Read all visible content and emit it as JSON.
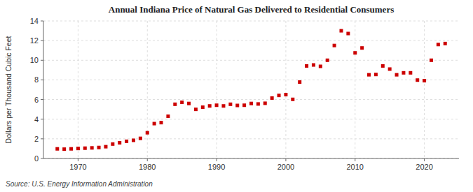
{
  "chart_data": {
    "type": "scatter",
    "title": "Annual Indiana Price of Natural Gas Delivered to Residential Consumers",
    "ylabel": "Dollars per Thousand Cubic Feet",
    "source": "Source: U.S. Energy Information Administration",
    "color": "#cc0000",
    "marker": "square",
    "grid": true,
    "x": [
      1967,
      1968,
      1969,
      1970,
      1971,
      1972,
      1973,
      1974,
      1975,
      1976,
      1977,
      1978,
      1979,
      1980,
      1981,
      1982,
      1983,
      1984,
      1985,
      1986,
      1987,
      1988,
      1989,
      1990,
      1991,
      1992,
      1993,
      1994,
      1995,
      1996,
      1997,
      1998,
      1999,
      2000,
      2001,
      2002,
      2003,
      2004,
      2005,
      2006,
      2007,
      2008,
      2009,
      2010,
      2011,
      2012,
      2013,
      2014,
      2015,
      2016,
      2017,
      2018,
      2019,
      2020,
      2021,
      2022,
      2023
    ],
    "values": [
      0.98,
      0.95,
      0.98,
      1.02,
      1.05,
      1.08,
      1.12,
      1.2,
      1.47,
      1.6,
      1.75,
      1.85,
      2.05,
      2.62,
      3.55,
      3.65,
      4.3,
      5.52,
      5.72,
      5.6,
      5.0,
      5.22,
      5.35,
      5.42,
      5.35,
      5.52,
      5.4,
      5.42,
      5.6,
      5.55,
      5.62,
      6.15,
      6.42,
      6.5,
      6.02,
      7.78,
      9.42,
      9.52,
      9.38,
      10.0,
      11.5,
      13.0,
      12.72,
      10.75,
      11.25,
      8.52,
      8.55,
      9.42,
      9.1,
      8.52,
      8.72,
      8.72,
      7.98,
      7.92,
      10.0,
      11.6,
      11.7
    ],
    "xlim": [
      1965,
      2025
    ],
    "ylim": [
      0,
      14
    ],
    "xticks": [
      1970,
      1980,
      1990,
      2000,
      2010,
      2020
    ],
    "yticks": [
      0,
      2,
      4,
      6,
      8,
      10,
      12,
      14
    ]
  }
}
